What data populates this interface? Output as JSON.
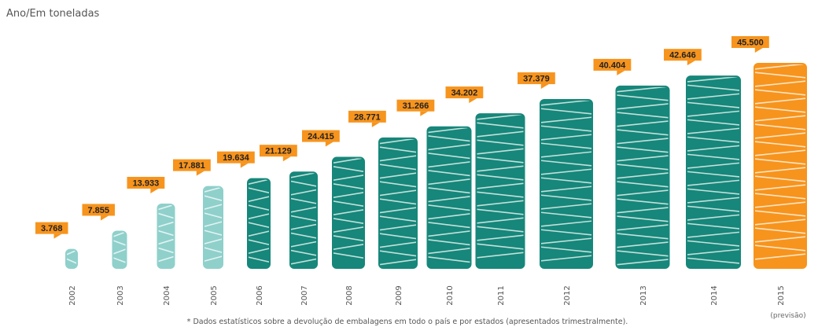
{
  "chart_data": {
    "type": "bar",
    "title": "",
    "subtitle": "Ano/Em toneladas",
    "xlabel": "",
    "ylabel": "",
    "categories": [
      "2002",
      "2003",
      "2004",
      "2005",
      "2006",
      "2007",
      "2008",
      "2009",
      "2010",
      "2011",
      "2012",
      "2013",
      "2014",
      "2015"
    ],
    "values": [
      3768,
      7855,
      13933,
      17881,
      19634,
      21129,
      24415,
      28771,
      31266,
      34202,
      37379,
      40404,
      42646,
      45500
    ],
    "value_labels": [
      "3.768",
      "7.855",
      "13.933",
      "17.881",
      "19.634",
      "21.129",
      "24.415",
      "28.771",
      "31.266",
      "34.202",
      "37.379",
      "40.404",
      "42.646",
      "45.500"
    ],
    "bar_colors": [
      "#8fd0cb",
      "#8fd0cb",
      "#8fd0cb",
      "#8fd0cb",
      "#16877a",
      "#16877a",
      "#16877a",
      "#16877a",
      "#16877a",
      "#16877a",
      "#16877a",
      "#16877a",
      "#16877a",
      "#f7941d"
    ],
    "label_box_color": "#f7941d",
    "forecast_note": "(previsão)",
    "footnote": "* Dados estatísticos sobre a devolução de embalagens em todo o país e por estados (apresentados trimestralmente).",
    "grid": false,
    "legend": "none"
  }
}
